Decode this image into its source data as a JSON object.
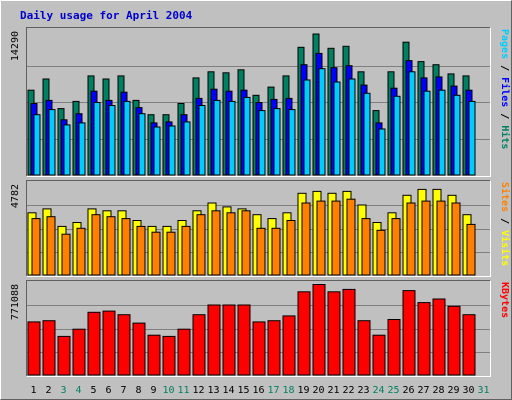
{
  "chart_data": {
    "type": "bar",
    "title": "Daily usage for April 2004",
    "categories": [
      "1",
      "2",
      "3",
      "4",
      "5",
      "6",
      "7",
      "8",
      "9",
      "10",
      "11",
      "12",
      "13",
      "14",
      "15",
      "16",
      "17",
      "18",
      "19",
      "20",
      "21",
      "22",
      "23",
      "24",
      "25",
      "26",
      "27",
      "28",
      "29",
      "30",
      "31"
    ],
    "weekend_days": [
      "3",
      "4",
      "10",
      "11",
      "17",
      "18",
      "24",
      "25",
      "31"
    ],
    "panels": [
      {
        "name": "hits-files-pages",
        "ymax_label": "14290",
        "ylim": [
          0,
          14290
        ],
        "legend": [
          {
            "text": "Pages",
            "color": "#00ccff"
          },
          {
            "text": " / ",
            "color": "#000000"
          },
          {
            "text": "Files",
            "color": "#0000ff"
          },
          {
            "text": " / ",
            "color": "#000000"
          },
          {
            "text": "Hits",
            "color": "#008060"
          }
        ],
        "series": [
          {
            "name": "Hits",
            "color": "#008060",
            "values": [
              8300,
              9400,
              6500,
              7200,
              9700,
              9400,
              9700,
              7300,
              5900,
              5900,
              7000,
              9500,
              10100,
              10000,
              10300,
              7800,
              8600,
              9700,
              12500,
              13800,
              12400,
              12600,
              10100,
              6300,
              10100,
              13000,
              11100,
              10800,
              9900,
              9700,
              0
            ]
          },
          {
            "name": "Files",
            "color": "#0000ff",
            "values": [
              7000,
              7300,
              5400,
              6000,
              8200,
              7300,
              8100,
              6600,
              5100,
              5200,
              5900,
              7500,
              8400,
              8200,
              8300,
              7100,
              7400,
              7500,
              10800,
              11900,
              10500,
              10700,
              8800,
              5100,
              8500,
              11200,
              9500,
              9600,
              8700,
              8300,
              0
            ]
          },
          {
            "name": "Pages",
            "color": "#00ccff",
            "values": [
              5900,
              6400,
              4900,
              5100,
              7100,
              6800,
              7200,
              6000,
              4700,
              4800,
              5200,
              6800,
              7300,
              7200,
              7600,
              6300,
              6500,
              6400,
              9300,
              10400,
              9100,
              9400,
              8000,
              4500,
              7700,
              10100,
              8200,
              8300,
              7800,
              7200,
              0
            ]
          }
        ]
      },
      {
        "name": "visits-sites",
        "ymax_label": "4782",
        "ylim": [
          0,
          4782
        ],
        "legend": [
          {
            "text": "Sites",
            "color": "#ff8000"
          },
          {
            "text": " / ",
            "color": "#000000"
          },
          {
            "text": "Visits",
            "color": "#ffff00"
          }
        ],
        "series": [
          {
            "name": "Visits",
            "color": "#ffff00",
            "values": [
              3200,
              3400,
              2500,
              2700,
              3400,
              3300,
              3300,
              2800,
              2500,
              2500,
              2800,
              3300,
              3700,
              3500,
              3400,
              3100,
              2900,
              3200,
              4200,
              4300,
              4200,
              4300,
              3600,
              2700,
              3200,
              4100,
              4400,
              4400,
              4100,
              3100,
              0
            ]
          },
          {
            "name": "Sites",
            "color": "#ff8000",
            "values": [
              2900,
              3000,
              2100,
              2400,
              3100,
              3000,
              2900,
              2500,
              2200,
              2200,
              2500,
              3100,
              3300,
              3200,
              3300,
              2400,
              2400,
              2800,
              3700,
              3800,
              3800,
              3900,
              2900,
              2300,
              2900,
              3700,
              3800,
              3800,
              3700,
              2600,
              0
            ]
          }
        ]
      },
      {
        "name": "kbytes",
        "ymax_label": "771088",
        "ylim": [
          0,
          771088
        ],
        "legend": [
          {
            "text": "KBytes",
            "color": "#ff0000"
          }
        ],
        "series": [
          {
            "name": "KBytes",
            "color": "#ff0000",
            "values": [
              440000,
              450000,
              320000,
              380000,
              520000,
              530000,
              500000,
              430000,
              330000,
              320000,
              380000,
              500000,
              580000,
              580000,
              580000,
              440000,
              450000,
              490000,
              690000,
              750000,
              690000,
              710000,
              450000,
              330000,
              460000,
              700000,
              600000,
              630000,
              570000,
              500000,
              0
            ]
          }
        ]
      }
    ]
  }
}
